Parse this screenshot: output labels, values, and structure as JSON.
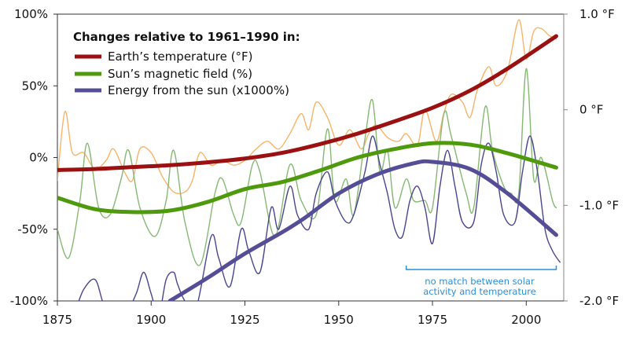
{
  "chart_data": {
    "type": "line",
    "xlim": [
      1875,
      2010
    ],
    "ylim_left": [
      -100,
      100
    ],
    "ylim_right": [
      -2.0,
      1.0
    ],
    "x_ticks": [
      "1875",
      "1900",
      "1925",
      "1950",
      "1975",
      "2000"
    ],
    "y_ticks_left": [
      "100%",
      "50%",
      "0%",
      "-50%",
      "-100%"
    ],
    "y_ticks_right": [
      "1.0 °F",
      "0 °F",
      "-1.0 °F",
      "-2.0 °F"
    ],
    "grid": false,
    "legend": {
      "title": "Changes relative to 1961–1990 in:",
      "placement": "top-left",
      "entries": [
        "Earth’s temperature (°F)",
        "Sun’s magnetic field (%)",
        "Energy from the sun (x1000%)"
      ]
    },
    "annotation": [
      "no match between solar",
      "activity and temperature"
    ],
    "annotation_range": [
      1968,
      2008
    ],
    "series": [
      {
        "name": "Earth’s temperature (°F)",
        "axis": "right",
        "color": "#9b1111",
        "kind": "smooth",
        "x": [
          1875,
          1885,
          1895,
          1905,
          1915,
          1925,
          1935,
          1945,
          1955,
          1965,
          1975,
          1985,
          1995,
          2008
        ],
        "y": [
          -0.63,
          -0.62,
          -0.6,
          -0.58,
          -0.55,
          -0.51,
          -0.45,
          -0.36,
          -0.25,
          -0.12,
          0.02,
          0.2,
          0.43,
          0.77
        ]
      },
      {
        "axis": "right",
        "color": "#f7b46a",
        "kind": "raw",
        "x": [
          1875,
          1877,
          1879,
          1882,
          1885,
          1888,
          1890,
          1893,
          1895,
          1897,
          1900,
          1903,
          1906,
          1909,
          1911,
          1913,
          1916,
          1919,
          1922,
          1925,
          1928,
          1931,
          1934,
          1937,
          1940,
          1942,
          1944,
          1947,
          1950,
          1953,
          1956,
          1958,
          1960,
          1963,
          1966,
          1968,
          1971,
          1973,
          1976,
          1978,
          1980,
          1983,
          1985,
          1987,
          1990,
          1992,
          1995,
          1998,
          2000,
          2002,
          2004,
          2006,
          2008
        ],
        "y": [
          -0.74,
          -0.02,
          -0.45,
          -0.45,
          -0.62,
          -0.53,
          -0.41,
          -0.66,
          -0.74,
          -0.41,
          -0.45,
          -0.7,
          -0.86,
          -0.86,
          -0.74,
          -0.45,
          -0.58,
          -0.53,
          -0.58,
          -0.53,
          -0.41,
          -0.33,
          -0.41,
          -0.25,
          -0.04,
          -0.21,
          0.08,
          -0.08,
          -0.37,
          -0.21,
          -0.41,
          -0.25,
          -0.16,
          -0.29,
          -0.33,
          -0.25,
          -0.37,
          0,
          -0.33,
          -0.04,
          0.16,
          0.08,
          -0.08,
          0.21,
          0.45,
          0.25,
          0.41,
          0.94,
          0.53,
          0.82,
          0.85,
          0.78,
          0.74
        ]
      },
      {
        "name": "Sun’s magnetic field (%)",
        "axis": "left",
        "color": "#4e9a0c",
        "kind": "smooth",
        "x": [
          1875,
          1885,
          1895,
          1905,
          1915,
          1925,
          1935,
          1945,
          1955,
          1965,
          1975,
          1985,
          1995,
          2008
        ],
        "y": [
          -28,
          -36,
          -38,
          -37,
          -31,
          -22,
          -17,
          -9,
          0,
          6,
          10,
          9,
          3,
          -7
        ]
      },
      {
        "axis": "left",
        "color": "#86b874",
        "kind": "raw",
        "x": [
          1875,
          1878,
          1881,
          1883,
          1886,
          1889,
          1892,
          1894,
          1897,
          1901,
          1904,
          1906,
          1909,
          1913,
          1917,
          1919,
          1922,
          1924,
          1927,
          1929,
          1933,
          1937,
          1940,
          1944,
          1947,
          1949,
          1952,
          1954,
          1957,
          1959,
          1961,
          1963,
          1965,
          1968,
          1970,
          1973,
          1975,
          1978,
          1980,
          1984,
          1986,
          1989,
          1991,
          1994,
          1996,
          1998,
          2000,
          2002,
          2004,
          2007,
          2008
        ],
        "y": [
          -50,
          -70,
          -30,
          10,
          -35,
          -40,
          -15,
          5,
          -35,
          -55,
          -30,
          5,
          -45,
          -75,
          -25,
          -15,
          -40,
          -45,
          -5,
          -10,
          -55,
          -5,
          -30,
          -40,
          20,
          -30,
          -15,
          -40,
          13,
          40,
          -10,
          5,
          -35,
          -15,
          -30,
          -30,
          -35,
          30,
          15,
          -25,
          -35,
          35,
          5,
          -20,
          -25,
          -25,
          62,
          -15,
          0,
          -30,
          -35
        ]
      },
      {
        "name": "Energy from the sun (x1000%)",
        "axis": "left",
        "color": "#554e96",
        "kind": "smooth",
        "x": [
          1905,
          1915,
          1925,
          1935,
          1941,
          1950,
          1960,
          1970,
          1975,
          1985,
          1995,
          2008
        ],
        "y": [
          -100,
          -84,
          -67,
          -52,
          -42,
          -25,
          -12,
          -4,
          -3,
          -8,
          -25,
          -54
        ]
      },
      {
        "axis": "left",
        "color": "#4a4590",
        "kind": "raw",
        "x": [
          1875,
          1879,
          1882,
          1885,
          1887,
          1889,
          1893,
          1896,
          1898,
          1900,
          1902,
          1904,
          1906,
          1907,
          1909,
          1912,
          1916,
          1918,
          1921,
          1924,
          1926,
          1929,
          1932,
          1934,
          1937,
          1939,
          1942,
          1944,
          1947,
          1949,
          1952,
          1954,
          1957,
          1959,
          1961,
          1963,
          1965,
          1967,
          1969,
          1971,
          1973,
          1975,
          1977,
          1979,
          1981,
          1983,
          1986,
          1988,
          1990,
          1992,
          1994,
          1997,
          1999,
          2001,
          2003,
          2005,
          2007,
          2009
        ],
        "y": [
          -115,
          -110,
          -92,
          -85,
          -100,
          -115,
          -110,
          -95,
          -80,
          -95,
          -110,
          -85,
          -80,
          -88,
          -100,
          -105,
          -55,
          -70,
          -90,
          -50,
          -65,
          -80,
          -35,
          -50,
          -20,
          -40,
          -50,
          -25,
          -10,
          -30,
          -45,
          -40,
          -10,
          15,
          -5,
          -25,
          -50,
          -55,
          -30,
          -20,
          -35,
          -60,
          -20,
          5,
          -20,
          -45,
          -45,
          -5,
          10,
          -10,
          -40,
          -45,
          -10,
          15,
          -10,
          -50,
          -65,
          -73
        ]
      }
    ]
  }
}
